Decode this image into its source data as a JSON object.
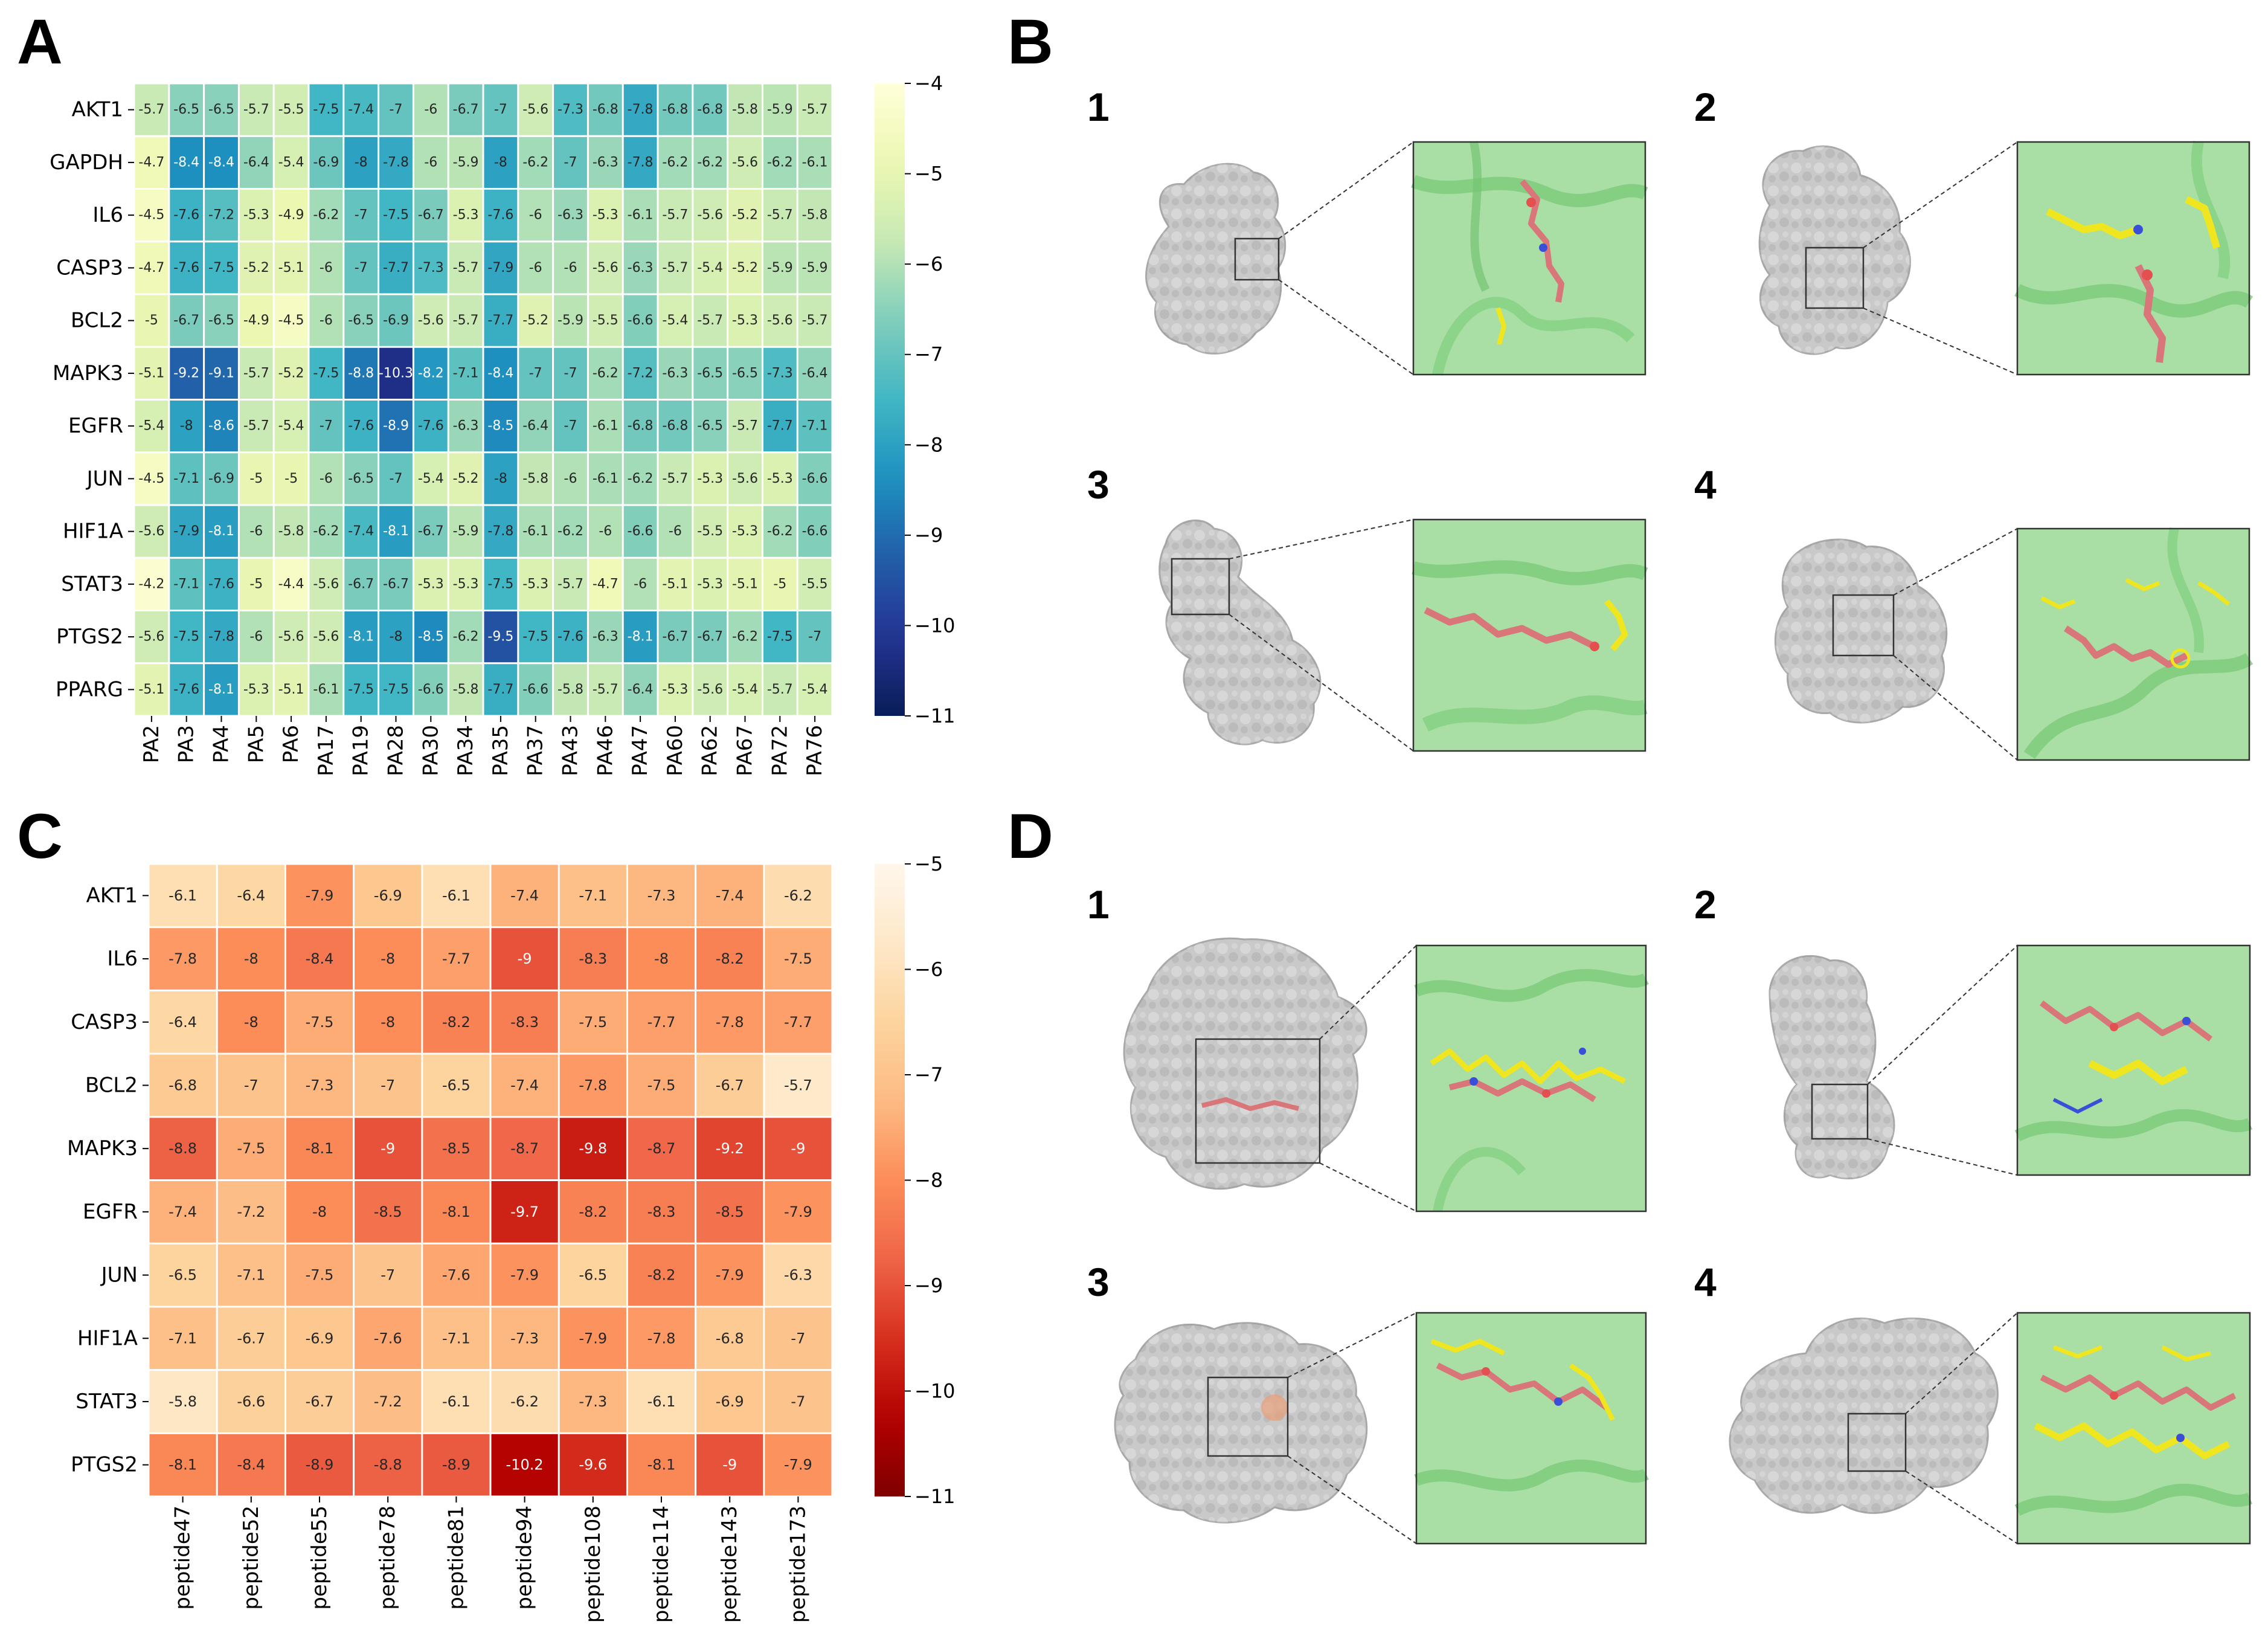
{
  "panels": {
    "A": {
      "label": "A"
    },
    "B": {
      "label": "B",
      "sub_labels": [
        "1",
        "2",
        "3",
        "4"
      ]
    },
    "C": {
      "label": "C"
    },
    "D": {
      "label": "D",
      "sub_labels": [
        "1",
        "2",
        "3",
        "4"
      ]
    }
  },
  "chart_data": [
    {
      "type": "heatmap",
      "panel": "A",
      "colormap": "YlGnBu_r",
      "rows": [
        "AKT1",
        "GAPDH",
        "IL6",
        "CASP3",
        "BCL2",
        "MAPK3",
        "EGFR",
        "JUN",
        "HIF1A",
        "STAT3",
        "PTGS2",
        "PPARG"
      ],
      "columns": [
        "PA2",
        "PA3",
        "PA4",
        "PA5",
        "PA6",
        "PA17",
        "PA19",
        "PA28",
        "PA30",
        "PA34",
        "PA35",
        "PA37",
        "PA43",
        "PA46",
        "PA47",
        "PA60",
        "PA62",
        "PA67",
        "PA72",
        "PA76"
      ],
      "values": [
        [
          -5.7,
          -6.5,
          -6.5,
          -5.7,
          -5.5,
          -7.5,
          -7.4,
          -7,
          -6,
          -6.7,
          -7,
          -5.6,
          -7.3,
          -6.8,
          -7.8,
          -6.8,
          -6.8,
          -5.8,
          -5.9,
          -5.7
        ],
        [
          -4.7,
          -8.4,
          -8.4,
          -6.4,
          -5.4,
          -6.9,
          -8,
          -7.8,
          -6,
          -5.9,
          -8,
          -6.2,
          -7,
          -6.3,
          -7.8,
          -6.2,
          -6.2,
          -5.6,
          -6.2,
          -6.1
        ],
        [
          -4.5,
          -7.6,
          -7.2,
          -5.3,
          -4.9,
          -6.2,
          -7,
          -7.5,
          -6.7,
          -5.3,
          -7.6,
          -6,
          -6.3,
          -5.3,
          -6.1,
          -5.7,
          -5.6,
          -5.2,
          -5.7,
          -5.8
        ],
        [
          -4.7,
          -7.6,
          -7.5,
          -5.2,
          -5.1,
          -6,
          -7,
          -7.7,
          -7.3,
          -5.7,
          -7.9,
          -6,
          -6,
          -5.6,
          -6.3,
          -5.7,
          -5.4,
          -5.2,
          -5.9,
          -5.9
        ],
        [
          -5,
          -6.7,
          -6.5,
          -4.9,
          -4.5,
          -6,
          -6.5,
          -6.9,
          -5.6,
          -5.7,
          -7.7,
          -5.2,
          -5.9,
          -5.5,
          -6.6,
          -5.4,
          -5.7,
          -5.3,
          -5.6,
          -5.7
        ],
        [
          -5.1,
          -9.2,
          -9.1,
          -5.7,
          -5.2,
          -7.5,
          -8.8,
          -10.3,
          -8.2,
          -7.1,
          -8.4,
          -7,
          -7,
          -6.2,
          -7.2,
          -6.3,
          -6.5,
          -6.5,
          -7.3,
          -6.4
        ],
        [
          -5.4,
          -8,
          -8.6,
          -5.7,
          -5.4,
          -7,
          -7.6,
          -8.9,
          -7.6,
          -6.3,
          -8.5,
          -6.4,
          -7,
          -6.1,
          -6.8,
          -6.8,
          -6.5,
          -5.7,
          -7.7,
          -7.1
        ],
        [
          -4.5,
          -7.1,
          -6.9,
          -5,
          -5,
          -6,
          -6.5,
          -7,
          -5.4,
          -5.2,
          -8,
          -5.8,
          -6,
          -6.1,
          -6.2,
          -5.7,
          -5.3,
          -5.6,
          -5.3,
          -6.6
        ],
        [
          -5.6,
          -7.9,
          -8.1,
          -6,
          -5.8,
          -6.2,
          -7.4,
          -8.1,
          -6.7,
          -5.9,
          -7.8,
          -6.1,
          -6.2,
          -6,
          -6.6,
          -6,
          -5.5,
          -5.3,
          -6.2,
          -6.6
        ],
        [
          -4.2,
          -7.1,
          -7.6,
          -5,
          -4.4,
          -5.6,
          -6.7,
          -6.7,
          -5.3,
          -5.3,
          -7.5,
          -5.3,
          -5.7,
          -4.7,
          -6,
          -5.1,
          -5.3,
          -5.1,
          -5,
          -5.5
        ],
        [
          -5.6,
          -7.5,
          -7.8,
          -6,
          -5.6,
          -5.6,
          -8.1,
          -8,
          -8.5,
          -6.2,
          -9.5,
          -7.5,
          -7.6,
          -6.3,
          -8.1,
          -6.7,
          -6.7,
          -6.2,
          -7.5,
          -7
        ],
        [
          -5.1,
          -7.6,
          -8.1,
          -5.3,
          -5.1,
          -6.1,
          -7.5,
          -7.5,
          -6.6,
          -5.8,
          -7.7,
          -6.6,
          -5.8,
          -5.7,
          -6.4,
          -5.3,
          -5.6,
          -5.4,
          -5.7,
          -5.4
        ]
      ],
      "display_values": [
        [
          "-5.7",
          "-6.5",
          "-6.5",
          "-5.7",
          "-5.5",
          "-7.5",
          "-7.4",
          "-7",
          "-6",
          "-6.7",
          "-7",
          "-5.6",
          "-7.3",
          "-6.8",
          "-7.8",
          "-6.8",
          "-6.8",
          "-5.8",
          "-5.9",
          "-5.7"
        ],
        [
          "-4.7",
          "-8.4",
          "-8.4",
          "-6.4",
          "-5.4",
          "-6.9",
          "-8",
          "-7.8",
          "-6",
          "-5.9",
          "-8",
          "-6.2",
          "-7",
          "-6.3",
          "-7.8",
          "-6.2",
          "-6.2",
          "-5.6",
          "-6.2",
          "-6.1"
        ],
        [
          "-4.5",
          "-7.6",
          "-7.2",
          "-5.3",
          "-4.9",
          "-6.2",
          "-7",
          "-7.5",
          "-6.7",
          "-5.3",
          "-7.6",
          "-6",
          "-6.3",
          "-5.3",
          "-6.1",
          "-5.7",
          "-5.6",
          "-5.2",
          "-5.7",
          "-5.8"
        ],
        [
          "-4.7",
          "-7.6",
          "-7.5",
          "-5.2",
          "-5.1",
          "-6",
          "-7",
          "-7.7",
          "-7.3",
          "-5.7",
          "-7.9",
          "-6",
          "-6",
          "-5.6",
          "-6.3",
          "-5.7",
          "-5.4",
          "-5.2",
          "-5.9",
          "-5.9"
        ],
        [
          "-5",
          "-6.7",
          "-6.5",
          "-4.9",
          "-4.5",
          "-6",
          "-6.5",
          "-6.9",
          "-5.6",
          "-5.7",
          "-7.7",
          "-5.2",
          "-5.9",
          "-5.5",
          "-6.6",
          "-5.4",
          "-5.7",
          "-5.3",
          "-5.6",
          "-5.7"
        ],
        [
          "-5.1",
          "-9.2",
          "-9.1",
          "-5.7",
          "-5.2",
          "-7.5",
          "-8.8",
          "-10.3",
          "-8.2",
          "-7.1",
          "-8.4",
          "-7",
          "-7",
          "-6.2",
          "-7.2",
          "-6.3",
          "-6.5",
          "-6.5",
          "-7.3",
          "-6.4"
        ],
        [
          "-5.4",
          "-8",
          "-8.6",
          "-5.7",
          "-5.4",
          "-7",
          "-7.6",
          "-8.9",
          "-7.6",
          "-6.3",
          "-8.5",
          "-6.4",
          "-7",
          "-6.1",
          "-6.8",
          "-6.8",
          "-6.5",
          "-5.7",
          "-7.7",
          "-7.1"
        ],
        [
          "-4.5",
          "-7.1",
          "-6.9",
          "-5",
          "-5",
          "-6",
          "-6.5",
          "-7",
          "-5.4",
          "-5.2",
          "-8",
          "-5.8",
          "-6",
          "-6.1",
          "-6.2",
          "-5.7",
          "-5.3",
          "-5.6",
          "-5.3",
          "-6.6"
        ],
        [
          "-5.6",
          "-7.9",
          "-8.1",
          "-6",
          "-5.8",
          "-6.2",
          "-7.4",
          "-8.1",
          "-6.7",
          "-5.9",
          "-7.8",
          "-6.1",
          "-6.2",
          "-6",
          "-6.6",
          "-6",
          "-5.5",
          "-5.3",
          "-6.2",
          "-6.6"
        ],
        [
          "-4.2",
          "-7.1",
          "-7.6",
          "-5",
          "-4.4",
          "-5.6",
          "-6.7",
          "-6.7",
          "-5.3",
          "-5.3",
          "-7.5",
          "-5.3",
          "-5.7",
          "-4.7",
          "-6",
          "-5.1",
          "-5.3",
          "-5.1",
          "-5",
          "-5.5"
        ],
        [
          "-5.6",
          "-7.5",
          "-7.8",
          "-6",
          "-5.6",
          "-5.6",
          "-8.1",
          "-8",
          "-8.5",
          "-6.2",
          "-9.5",
          "-7.5",
          "-7.6",
          "-6.3",
          "-8.1",
          "-6.7",
          "-6.7",
          "-6.2",
          "-7.5",
          "-7"
        ],
        [
          "-5.1",
          "-7.6",
          "-8.1",
          "-5.3",
          "-5.1",
          "-6.1",
          "-7.5",
          "-7.5",
          "-6.6",
          "-5.8",
          "-7.7",
          "-6.6",
          "-5.8",
          "-5.7",
          "-6.4",
          "-5.3",
          "-5.6",
          "-5.4",
          "-5.7",
          "-5.4"
        ]
      ],
      "vmin": -11,
      "vmax": -4,
      "colorbar_ticks": [
        -4,
        -5,
        -6,
        -7,
        -8,
        -9,
        -10,
        -11
      ],
      "colorbar_tick_labels": [
        "−4",
        "−5",
        "−6",
        "−7",
        "−8",
        "−9",
        "−10",
        "−11"
      ],
      "colors": {
        "low": "#081d58",
        "high": "#ffffd9"
      }
    },
    {
      "type": "heatmap",
      "panel": "C",
      "colormap": "OrRd_r",
      "rows": [
        "AKT1",
        "IL6",
        "CASP3",
        "BCL2",
        "MAPK3",
        "EGFR",
        "JUN",
        "HIF1A",
        "STAT3",
        "PTGS2"
      ],
      "columns": [
        "peptide47",
        "peptide52",
        "peptide55",
        "peptide78",
        "peptide81",
        "peptide94",
        "peptide108",
        "peptide114",
        "peptide143",
        "peptide173"
      ],
      "values": [
        [
          -6.1,
          -6.4,
          -7.9,
          -6.9,
          -6.1,
          -7.4,
          -7.1,
          -7.3,
          -7.4,
          -6.2
        ],
        [
          -7.8,
          -8,
          -8.4,
          -8,
          -7.7,
          -9,
          -8.3,
          -8,
          -8.2,
          -7.5
        ],
        [
          -6.4,
          -8,
          -7.5,
          -8,
          -8.2,
          -8.3,
          -7.5,
          -7.7,
          -7.8,
          -7.7
        ],
        [
          -6.8,
          -7,
          -7.3,
          -7,
          -6.5,
          -7.4,
          -7.8,
          -7.5,
          -6.7,
          -5.7
        ],
        [
          -8.8,
          -7.5,
          -8.1,
          -9,
          -8.5,
          -8.7,
          -9.8,
          -8.7,
          -9.2,
          -9
        ],
        [
          -7.4,
          -7.2,
          -8,
          -8.5,
          -8.1,
          -9.7,
          -8.2,
          -8.3,
          -8.5,
          -7.9
        ],
        [
          -6.5,
          -7.1,
          -7.5,
          -7,
          -7.6,
          -7.9,
          -6.5,
          -8.2,
          -7.9,
          -6.3
        ],
        [
          -7.1,
          -6.7,
          -6.9,
          -7.6,
          -7.1,
          -7.3,
          -7.9,
          -7.8,
          -6.8,
          -7
        ],
        [
          -5.8,
          -6.6,
          -6.7,
          -7.2,
          -6.1,
          -6.2,
          -7.3,
          -6.1,
          -6.9,
          -7
        ],
        [
          -8.1,
          -8.4,
          -8.9,
          -8.8,
          -8.9,
          -10.2,
          -9.6,
          -8.1,
          -9,
          -7.9
        ]
      ],
      "display_values": [
        [
          "-6.1",
          "-6.4",
          "-7.9",
          "-6.9",
          "-6.1",
          "-7.4",
          "-7.1",
          "-7.3",
          "-7.4",
          "-6.2"
        ],
        [
          "-7.8",
          "-8",
          "-8.4",
          "-8",
          "-7.7",
          "-9",
          "-8.3",
          "-8",
          "-8.2",
          "-7.5"
        ],
        [
          "-6.4",
          "-8",
          "-7.5",
          "-8",
          "-8.2",
          "-8.3",
          "-7.5",
          "-7.7",
          "-7.8",
          "-7.7"
        ],
        [
          "-6.8",
          "-7",
          "-7.3",
          "-7",
          "-6.5",
          "-7.4",
          "-7.8",
          "-7.5",
          "-6.7",
          "-5.7"
        ],
        [
          "-8.8",
          "-7.5",
          "-8.1",
          "-9",
          "-8.5",
          "-8.7",
          "-9.8",
          "-8.7",
          "-9.2",
          "-9"
        ],
        [
          "-7.4",
          "-7.2",
          "-8",
          "-8.5",
          "-8.1",
          "-9.7",
          "-8.2",
          "-8.3",
          "-8.5",
          "-7.9"
        ],
        [
          "-6.5",
          "-7.1",
          "-7.5",
          "-7",
          "-7.6",
          "-7.9",
          "-6.5",
          "-8.2",
          "-7.9",
          "-6.3"
        ],
        [
          "-7.1",
          "-6.7",
          "-6.9",
          "-7.6",
          "-7.1",
          "-7.3",
          "-7.9",
          "-7.8",
          "-6.8",
          "-7"
        ],
        [
          "-5.8",
          "-6.6",
          "-6.7",
          "-7.2",
          "-6.1",
          "-6.2",
          "-7.3",
          "-6.1",
          "-6.9",
          "-7"
        ],
        [
          "-8.1",
          "-8.4",
          "-8.9",
          "-8.8",
          "-8.9",
          "-10.2",
          "-9.6",
          "-8.1",
          "-9",
          "-7.9"
        ]
      ],
      "vmin": -11,
      "vmax": -5,
      "colorbar_ticks": [
        -5,
        -6,
        -7,
        -8,
        -9,
        -10,
        -11
      ],
      "colorbar_tick_labels": [
        "−5",
        "−6",
        "−7",
        "−8",
        "−9",
        "−10",
        "−11"
      ],
      "colors": {
        "low": "#7f0000",
        "high": "#fff7ec"
      }
    }
  ]
}
